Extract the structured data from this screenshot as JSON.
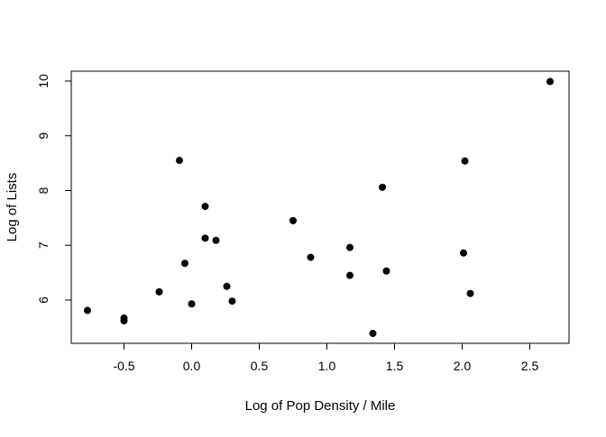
{
  "chart_data": {
    "type": "scatter",
    "title": "",
    "xlabel": "Log of Pop Density / Mile",
    "ylabel": "Log of Lists",
    "xlim": [
      -0.89,
      2.79
    ],
    "ylim": [
      5.21,
      10.18
    ],
    "xticks": [
      -0.5,
      0.0,
      0.5,
      1.0,
      1.5,
      2.0,
      2.5
    ],
    "xtick_labels": [
      "-0.5",
      "0.0",
      "0.5",
      "1.0",
      "1.5",
      "2.0",
      "2.5"
    ],
    "yticks": [
      6,
      7,
      8,
      9,
      10
    ],
    "ytick_labels": [
      "6",
      "7",
      "8",
      "9",
      "10"
    ],
    "grid": false,
    "marker_color": "#000000",
    "points": [
      {
        "x": -0.77,
        "y": 5.81
      },
      {
        "x": -0.5,
        "y": 5.67
      },
      {
        "x": -0.5,
        "y": 5.62
      },
      {
        "x": -0.24,
        "y": 6.15
      },
      {
        "x": -0.09,
        "y": 8.55
      },
      {
        "x": -0.05,
        "y": 6.67
      },
      {
        "x": 0.0,
        "y": 5.93
      },
      {
        "x": 0.1,
        "y": 7.71
      },
      {
        "x": 0.1,
        "y": 7.13
      },
      {
        "x": 0.18,
        "y": 7.09
      },
      {
        "x": 0.26,
        "y": 6.25
      },
      {
        "x": 0.3,
        "y": 5.98
      },
      {
        "x": 0.75,
        "y": 7.45
      },
      {
        "x": 0.88,
        "y": 6.78
      },
      {
        "x": 1.17,
        "y": 6.96
      },
      {
        "x": 1.17,
        "y": 6.45
      },
      {
        "x": 1.34,
        "y": 5.39
      },
      {
        "x": 1.41,
        "y": 8.06
      },
      {
        "x": 1.44,
        "y": 6.53
      },
      {
        "x": 2.01,
        "y": 6.86
      },
      {
        "x": 2.02,
        "y": 8.54
      },
      {
        "x": 2.06,
        "y": 6.12
      },
      {
        "x": 2.65,
        "y": 9.99
      }
    ]
  }
}
